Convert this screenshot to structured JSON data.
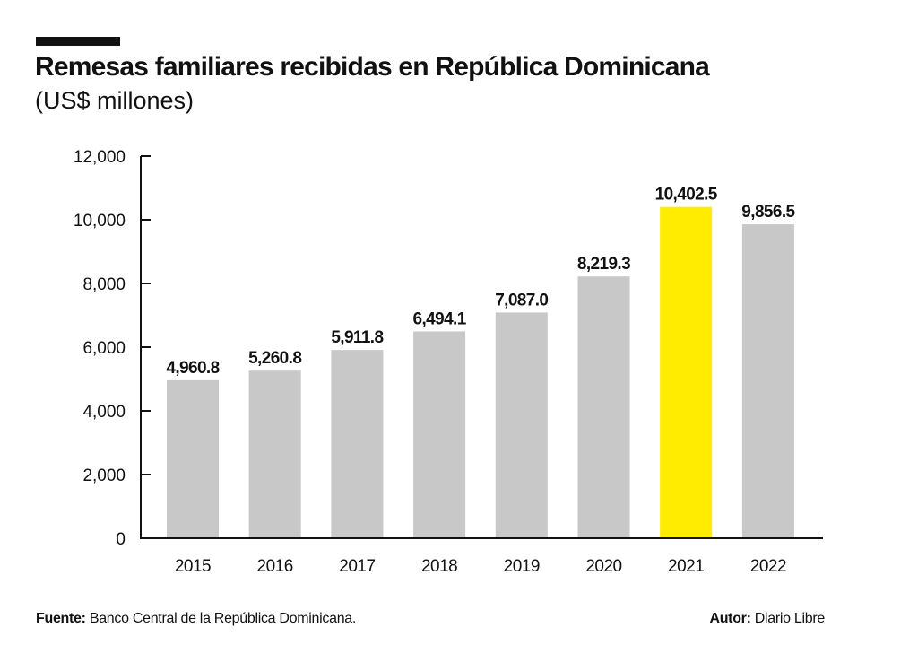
{
  "header": {
    "title": "Remesas familiares recibidas en República Dominicana",
    "subtitle": "(US$ millones)"
  },
  "footer": {
    "source_label": "Fuente:",
    "source_text": " Banco Central de la República Dominicana.",
    "author_label": "Autor:",
    "author_text": " Diario Libre"
  },
  "colors": {
    "bar_default": "#c8c8c8",
    "bar_highlight": "#ffec00",
    "axis": "#111111"
  },
  "chart_data": {
    "type": "bar",
    "title": "Remesas familiares recibidas en República Dominicana",
    "subtitle": "(US$ millones)",
    "xlabel": "",
    "ylabel": "",
    "categories": [
      "2015",
      "2016",
      "2017",
      "2018",
      "2019",
      "2020",
      "2021",
      "2022"
    ],
    "values": [
      4960.8,
      5260.8,
      5911.8,
      6494.1,
      7087.0,
      8219.3,
      10402.5,
      9856.5
    ],
    "data_labels": [
      "4,960.8",
      "5,260.8",
      "5,911.8",
      "6,494.1",
      "7,087.0",
      "8,219.3",
      "10,402.5",
      "9,856.5"
    ],
    "highlight_category": "2021",
    "ylim": [
      0,
      12000
    ],
    "yticks": [
      0,
      2000,
      4000,
      6000,
      8000,
      10000,
      12000
    ],
    "ytick_labels": [
      "0",
      "2,000",
      "4,000",
      "6,000",
      "8,000",
      "10,000",
      "12,000"
    ],
    "grid": false,
    "legend": "none"
  }
}
